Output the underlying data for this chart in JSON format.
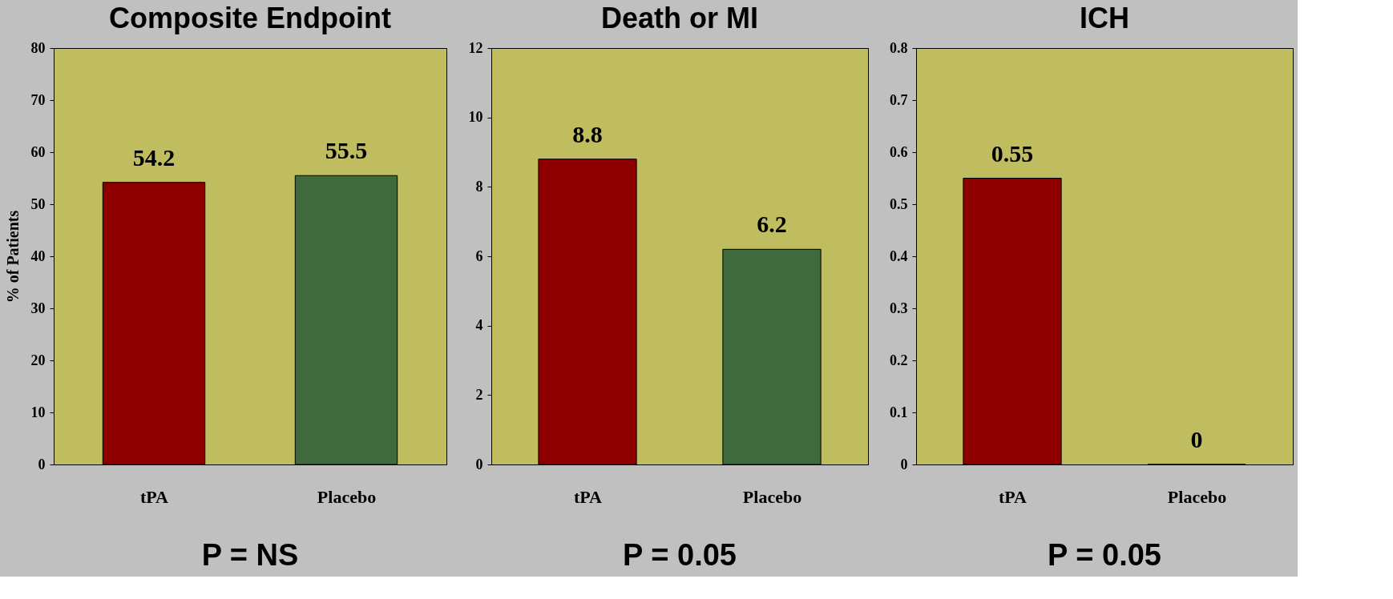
{
  "chart_data": [
    {
      "type": "bar",
      "title": "Composite Endpoint",
      "ylabel": "% of Patients",
      "categories": [
        "tPA",
        "Placebo"
      ],
      "values": [
        54.2,
        55.5
      ],
      "colors": [
        "#8e0000",
        "#3e6a3e"
      ],
      "ylim": [
        0,
        80
      ],
      "yticks": [
        0,
        10,
        20,
        30,
        40,
        50,
        60,
        70,
        80
      ],
      "data_labels": true,
      "annotations": [
        "P = NS"
      ]
    },
    {
      "type": "bar",
      "title": "Death or MI",
      "categories": [
        "tPA",
        "Placebo"
      ],
      "values": [
        8.8,
        6.2
      ],
      "colors": [
        "#8e0000",
        "#3e6a3e"
      ],
      "ylim": [
        0,
        12
      ],
      "yticks": [
        0,
        2,
        4,
        6,
        8,
        10,
        12
      ],
      "data_labels": true,
      "annotations": [
        "P = 0.05"
      ]
    },
    {
      "type": "bar",
      "title": "ICH",
      "categories": [
        "tPA",
        "Placebo"
      ],
      "values": [
        0.55,
        0
      ],
      "colors": [
        "#8e0000",
        "#8e0000"
      ],
      "ylim": [
        0,
        0.8
      ],
      "yticks": [
        0,
        0.1,
        0.2,
        0.3,
        0.4,
        0.5,
        0.6,
        0.7,
        0.8
      ],
      "data_labels": true,
      "annotations": [
        "P = 0.05"
      ]
    }
  ]
}
